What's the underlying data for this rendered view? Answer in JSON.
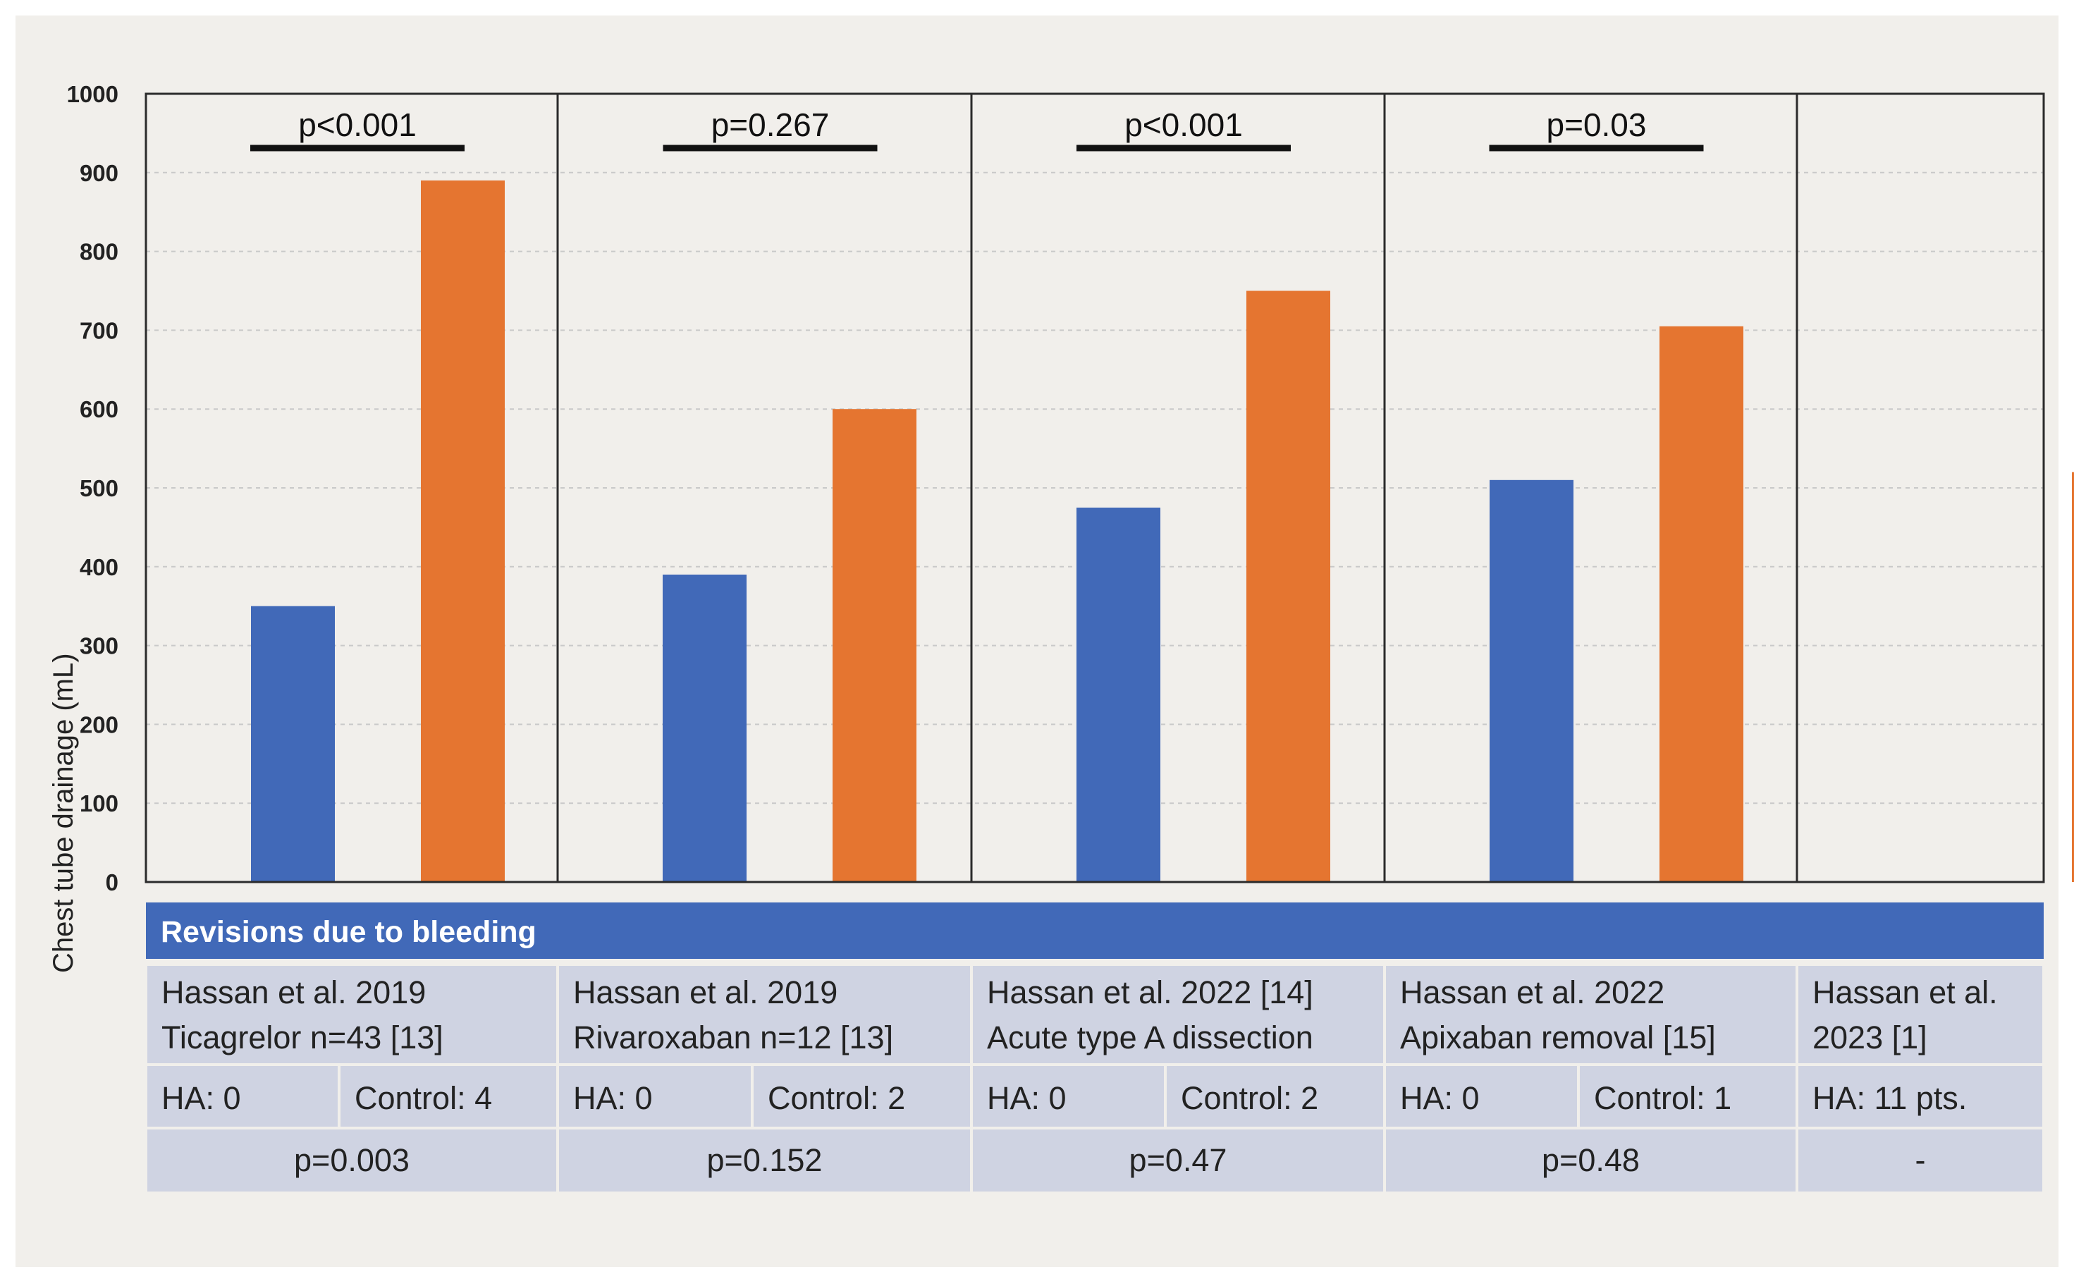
{
  "chart_data": {
    "type": "bar",
    "title": "",
    "xlabel": "",
    "ylabel": "Chest tube drainage (mL)",
    "ylim": [
      0,
      1000
    ],
    "yticks": [
      0,
      100,
      200,
      300,
      400,
      500,
      600,
      700,
      800,
      900,
      1000
    ],
    "grid": true,
    "series": [
      {
        "name": "HA",
        "color": "#4169b8"
      },
      {
        "name": "Control",
        "color": "#e57530"
      }
    ],
    "groups": [
      {
        "label": "Hassan et al. 2019 Ticagrelor n=43 [13]",
        "values": [
          350,
          890
        ],
        "p": "p<0.001"
      },
      {
        "label": "Hassan et al. 2019 Rivaroxaban n=12 [13]",
        "values": [
          390,
          600
        ],
        "p": "p=0.267"
      },
      {
        "label": "Hassan et al. 2022 [14] Acute type A dissection",
        "values": [
          475,
          750
        ],
        "p": "p<0.001"
      },
      {
        "label": "Hassan et al. 2022 Apixaban removal [15]",
        "values": [
          510,
          705
        ],
        "p": "p=0.03"
      },
      {
        "label": "Hassan et al. 2023 [1]",
        "values": [
          null,
          520
        ],
        "p": ""
      }
    ]
  },
  "table": {
    "header": "Revisions due to bleeding",
    "studies": [
      {
        "line1": "Hassan et al. 2019",
        "line2": "Ticagrelor n=43 [13]",
        "ha": "HA: 0",
        "control": "Control: 4",
        "p": "p=0.003"
      },
      {
        "line1": "Hassan et al. 2019",
        "line2": "Rivaroxaban n=12 [13]",
        "ha": "HA: 0",
        "control": "Control: 2",
        "p": "p=0.152"
      },
      {
        "line1": "Hassan et al. 2022 [14]",
        "line2": "Acute type A dissection",
        "ha": "HA: 0",
        "control": "Control: 2",
        "p": "p=0.47"
      },
      {
        "line1": "Hassan et al. 2022",
        "line2": "Apixaban removal [15]",
        "ha": "HA: 0",
        "control": "Control: 1",
        "p": "p=0.48"
      },
      {
        "line1": "Hassan et al.",
        "line2": "2023 [1]",
        "ha": "HA: 11 pts.",
        "control": "",
        "p": "-"
      }
    ]
  },
  "colors": {
    "background": "#f1efeb",
    "ha_bar": "#4169b8",
    "control_bar": "#e57530",
    "table_header": "#4169b8",
    "table_cell": "#cfd3e2",
    "text": "#222222"
  }
}
